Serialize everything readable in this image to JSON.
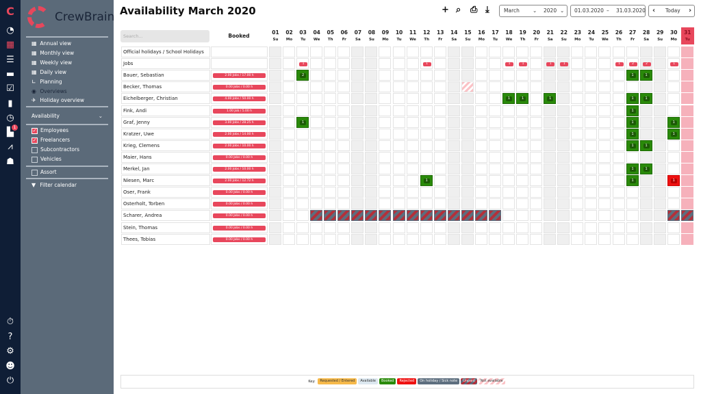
{
  "app": {
    "name": "CrewBrain",
    "accent": "#e8475c"
  },
  "iconbar": {
    "top": [
      {
        "icon": "dashboard-icon",
        "g": "◔"
      },
      {
        "icon": "calendar-icon",
        "g": "▦",
        "active": true
      },
      {
        "icon": "list-icon",
        "g": "☰"
      },
      {
        "icon": "folder-icon",
        "g": "▬"
      },
      {
        "icon": "checkbox-icon",
        "g": "☑"
      },
      {
        "icon": "clipboard-icon",
        "g": "▮"
      },
      {
        "icon": "clock-icon",
        "g": "◷"
      },
      {
        "icon": "briefcase-icon",
        "g": "▙",
        "badge": "1"
      },
      {
        "icon": "chart-icon",
        "g": "⩘"
      },
      {
        "icon": "users-icon",
        "g": "☗"
      }
    ],
    "bottom": [
      {
        "icon": "stopwatch-icon",
        "g": "⏱"
      },
      {
        "icon": "help-icon",
        "g": "?"
      },
      {
        "icon": "gear-icon",
        "g": "⚙"
      },
      {
        "icon": "user-icon",
        "g": "☻"
      },
      {
        "icon": "power-icon",
        "g": "⏻"
      }
    ]
  },
  "nav": {
    "views": [
      {
        "label": "Annual view",
        "icon": "calendar-icon"
      },
      {
        "label": "Monthly view",
        "icon": "calendar-icon"
      },
      {
        "label": "Weekly view",
        "icon": "calendar-icon"
      },
      {
        "label": "Daily view",
        "icon": "calendar-icon"
      },
      {
        "label": "Planning",
        "icon": "planning-icon"
      },
      {
        "label": "Overviews",
        "icon": "eye-icon",
        "active": true
      },
      {
        "label": "Holiday overview",
        "icon": "plane-icon"
      }
    ],
    "section": "Availability",
    "filters": [
      {
        "label": "Employees",
        "checked": true
      },
      {
        "label": "Freelancers",
        "checked": true
      },
      {
        "label": "Subcontractors",
        "checked": false
      },
      {
        "label": "Vehicles",
        "checked": false
      }
    ],
    "assort": {
      "label": "Assort",
      "checked": false
    },
    "filter_calendar": "Filter calendar"
  },
  "header": {
    "title": "Availability March 2020",
    "month": "March",
    "year": "2020",
    "date_from": "01.03.2020",
    "date_sep": "–",
    "date_to": "31.03.2020",
    "today": "Today"
  },
  "grid": {
    "search_placeholder": "Search...",
    "booked_header": "Booked",
    "today_day": 31,
    "days": [
      [
        "01",
        "Su"
      ],
      [
        "02",
        "Mo"
      ],
      [
        "03",
        "Tu"
      ],
      [
        "04",
        "We"
      ],
      [
        "05",
        "Th"
      ],
      [
        "06",
        "Fr"
      ],
      [
        "07",
        "Sa"
      ],
      [
        "08",
        "Su"
      ],
      [
        "09",
        "Mo"
      ],
      [
        "10",
        "Tu"
      ],
      [
        "11",
        "We"
      ],
      [
        "12",
        "Th"
      ],
      [
        "13",
        "Fr"
      ],
      [
        "14",
        "Sa"
      ],
      [
        "15",
        "Su"
      ],
      [
        "16",
        "Mo"
      ],
      [
        "17",
        "Tu"
      ],
      [
        "18",
        "We"
      ],
      [
        "19",
        "Th"
      ],
      [
        "20",
        "Fr"
      ],
      [
        "21",
        "Sa"
      ],
      [
        "22",
        "Su"
      ],
      [
        "23",
        "Mo"
      ],
      [
        "24",
        "Tu"
      ],
      [
        "25",
        "We"
      ],
      [
        "26",
        "Th"
      ],
      [
        "27",
        "Fr"
      ],
      [
        "28",
        "Sa"
      ],
      [
        "29",
        "Su"
      ],
      [
        "30",
        "Mo"
      ],
      [
        "31",
        "Tu"
      ]
    ],
    "rows": [
      {
        "name": "Official holidays / School Holidays",
        "booked": "",
        "cells": []
      },
      {
        "name": "Jobs",
        "booked": "",
        "cells": [
          [
            3,
            "job",
            "1"
          ],
          [
            12,
            "job",
            "1"
          ],
          [
            18,
            "job",
            "1"
          ],
          [
            19,
            "job",
            "1"
          ],
          [
            21,
            "job",
            "1"
          ],
          [
            22,
            "job",
            "1"
          ],
          [
            26,
            "job",
            "1"
          ],
          [
            27,
            "job",
            "2"
          ],
          [
            28,
            "job",
            "2"
          ],
          [
            30,
            "job",
            "1"
          ]
        ]
      },
      {
        "name": "Bauer, Sebastian",
        "booked": "2.00 Jobs / 17.00 h",
        "cells": [
          [
            3,
            "booked",
            "2"
          ],
          [
            27,
            "booked",
            "1"
          ],
          [
            28,
            "booked",
            "1"
          ]
        ]
      },
      {
        "name": "Becker, Thomas",
        "booked": "0.00 Jobs / 0.00 h",
        "cells": [
          [
            15,
            "na",
            ""
          ]
        ]
      },
      {
        "name": "Eichelberger, Christian",
        "booked": "4.00 Jobs / 50.00 h",
        "cells": [
          [
            18,
            "booked",
            "1"
          ],
          [
            19,
            "booked",
            "1"
          ],
          [
            21,
            "booked",
            "1"
          ],
          [
            27,
            "booked",
            "1"
          ],
          [
            28,
            "booked",
            "1"
          ]
        ]
      },
      {
        "name": "Fink, Andi",
        "booked": "1.00 Job / 5.00 h",
        "cells": [
          [
            27,
            "booked",
            "1"
          ]
        ]
      },
      {
        "name": "Graf, Jenny",
        "booked": "3.00 Jobs / 28.25 h",
        "cells": [
          [
            3,
            "booked",
            "1"
          ],
          [
            27,
            "booked",
            "1"
          ],
          [
            30,
            "booked",
            "1"
          ]
        ]
      },
      {
        "name": "Kratzer, Uwe",
        "booked": "2.00 Jobs / 14.00 h",
        "cells": [
          [
            27,
            "booked",
            "1"
          ],
          [
            30,
            "booked",
            "1"
          ]
        ]
      },
      {
        "name": "Krieg, Clemens",
        "booked": "2.00 Jobs / 10.00 h",
        "cells": [
          [
            27,
            "booked",
            "1"
          ],
          [
            28,
            "booked",
            "1"
          ]
        ]
      },
      {
        "name": "Maier, Hans",
        "booked": "0.00 Jobs / 0.00 h",
        "cells": []
      },
      {
        "name": "Merkel, Jan",
        "booked": "2.00 Jobs / 10.00 h",
        "cells": [
          [
            27,
            "booked",
            "1"
          ],
          [
            28,
            "booked",
            "1"
          ]
        ]
      },
      {
        "name": "Niesen, Marc",
        "booked": "2.00 Jobs / 12.72 h",
        "cells": [
          [
            12,
            "booked",
            "1"
          ],
          [
            27,
            "booked",
            "1"
          ],
          [
            30,
            "rejected",
            "1"
          ]
        ]
      },
      {
        "name": "Oser, Frank",
        "booked": "0.00 Jobs / 0.00 h",
        "cells": []
      },
      {
        "name": "Osterholt, Torben",
        "booked": "0.00 Jobs / 0.00 h",
        "cells": []
      },
      {
        "name": "Scharer, Andrea",
        "booked": "0.00 Jobs / 0.00 h",
        "cells": [
          [
            4,
            "unpaid",
            ""
          ],
          [
            5,
            "unpaid",
            ""
          ],
          [
            6,
            "unpaid",
            ""
          ],
          [
            7,
            "unpaid",
            ""
          ],
          [
            8,
            "unpaid",
            ""
          ],
          [
            9,
            "unpaid",
            ""
          ],
          [
            10,
            "unpaid",
            ""
          ],
          [
            11,
            "unpaid",
            ""
          ],
          [
            12,
            "unpaid",
            ""
          ],
          [
            13,
            "unpaid",
            ""
          ],
          [
            14,
            "unpaid",
            ""
          ],
          [
            15,
            "unpaid",
            ""
          ],
          [
            16,
            "unpaid",
            ""
          ],
          [
            17,
            "unpaid",
            ""
          ],
          [
            30,
            "unpaid",
            ""
          ],
          [
            31,
            "unpaid",
            ""
          ]
        ]
      },
      {
        "name": "Stein, Thomas",
        "booked": "0.00 Jobs / 0.00 h",
        "cells": []
      },
      {
        "name": "Thees, Tobias",
        "booked": "0.00 Jobs / 0.00 h",
        "cells": []
      }
    ]
  },
  "legend": {
    "key": "Key:",
    "items": [
      {
        "label": "Requested / Entered",
        "bg": "#f6b94a",
        "fg": "#333"
      },
      {
        "label": "Available",
        "bg": "#dde8f0",
        "fg": "#333"
      },
      {
        "label": "Booked",
        "bg": "#2a8a0a",
        "fg": "#fff"
      },
      {
        "label": "Rejected",
        "bg": "#ee1111",
        "fg": "#fff"
      },
      {
        "label": "On holiday / Sick note",
        "bg": "#5d6e7e",
        "fg": "#fff"
      },
      {
        "label": "Unpaid",
        "bg": "repeating-linear-gradient(135deg,#b3303a 0 3px,#5d6e7e 3px 6px)",
        "fg": "#fff"
      },
      {
        "label": "Not available",
        "bg": "repeating-linear-gradient(135deg,#fbc2c6 0 3px,#fff 3px 6px)",
        "fg": "#333"
      }
    ]
  }
}
